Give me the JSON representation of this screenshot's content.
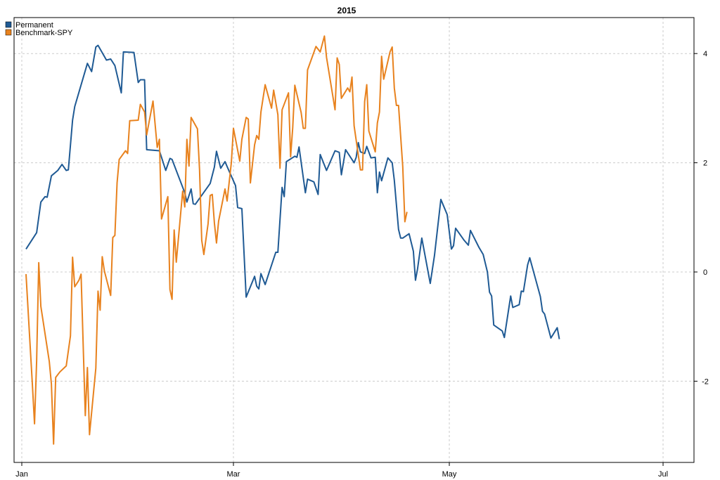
{
  "chart_data": {
    "type": "line",
    "title": "2015",
    "xlabel": "",
    "ylabel": "",
    "ylim": [
      -3.45,
      4.55
    ],
    "xlim": [
      0.0,
      6.06
    ],
    "x_axis": {
      "ticks": [
        0.0,
        1.0,
        2.02,
        3.03
      ],
      "tick_labels": [
        "Jan",
        "Mar",
        "May",
        "Jul"
      ]
    },
    "y_axis": {
      "ticks": [
        -2,
        0,
        2,
        4
      ],
      "tick_labels": [
        "-2",
        "0",
        "2",
        "4"
      ],
      "side": "right"
    },
    "grid": true,
    "legend": {
      "placement": "top-left"
    },
    "series": [
      {
        "name": "Permanent",
        "color": "#1F5A94",
        "points": [
          [
            0.02,
            0.42
          ],
          [
            0.07,
            0.72
          ],
          [
            0.09,
            1.28
          ],
          [
            0.11,
            1.38
          ],
          [
            0.12,
            1.37
          ],
          [
            0.14,
            1.76
          ],
          [
            0.17,
            1.86
          ],
          [
            0.19,
            1.97
          ],
          [
            0.21,
            1.86
          ],
          [
            0.22,
            1.87
          ],
          [
            0.24,
            2.78
          ],
          [
            0.25,
            3.03
          ],
          [
            0.31,
            3.82
          ],
          [
            0.33,
            3.67
          ],
          [
            0.35,
            4.12
          ],
          [
            0.36,
            4.15
          ],
          [
            0.4,
            3.88
          ],
          [
            0.42,
            3.9
          ],
          [
            0.44,
            3.78
          ],
          [
            0.47,
            3.28
          ],
          [
            0.48,
            4.03
          ],
          [
            0.53,
            4.02
          ],
          [
            0.55,
            3.47
          ],
          [
            0.56,
            3.52
          ],
          [
            0.58,
            3.52
          ],
          [
            0.59,
            2.24
          ],
          [
            0.65,
            2.22
          ],
          [
            0.68,
            1.86
          ],
          [
            0.7,
            2.08
          ],
          [
            0.71,
            2.06
          ],
          [
            0.77,
            1.45
          ],
          [
            0.78,
            1.28
          ],
          [
            0.8,
            1.52
          ],
          [
            0.81,
            1.25
          ],
          [
            0.82,
            1.24
          ],
          [
            0.89,
            1.62
          ],
          [
            0.91,
            1.92
          ],
          [
            0.92,
            2.21
          ],
          [
            0.94,
            1.9
          ],
          [
            0.96,
            2.02
          ],
          [
            0.97,
            1.93
          ],
          [
            1.01,
            1.58
          ],
          [
            1.02,
            1.18
          ],
          [
            1.04,
            1.16
          ],
          [
            1.06,
            -0.46
          ],
          [
            1.1,
            -0.08
          ],
          [
            1.11,
            -0.26
          ],
          [
            1.12,
            -0.31
          ],
          [
            1.13,
            -0.03
          ],
          [
            1.15,
            -0.23
          ],
          [
            1.2,
            0.36
          ],
          [
            1.21,
            0.36
          ],
          [
            1.23,
            1.55
          ],
          [
            1.24,
            1.38
          ],
          [
            1.25,
            2.02
          ],
          [
            1.29,
            2.12
          ],
          [
            1.3,
            2.1
          ],
          [
            1.31,
            2.29
          ],
          [
            1.34,
            1.45
          ],
          [
            1.35,
            1.7
          ],
          [
            1.38,
            1.65
          ],
          [
            1.4,
            1.42
          ],
          [
            1.41,
            2.15
          ],
          [
            1.44,
            1.86
          ],
          [
            1.48,
            2.22
          ],
          [
            1.5,
            2.19
          ],
          [
            1.51,
            1.78
          ],
          [
            1.53,
            2.24
          ],
          [
            1.57,
            2.0
          ],
          [
            1.58,
            2.1
          ],
          [
            1.59,
            2.37
          ],
          [
            1.6,
            2.2
          ],
          [
            1.62,
            2.17
          ],
          [
            1.63,
            2.3
          ],
          [
            1.65,
            2.09
          ],
          [
            1.67,
            2.1
          ],
          [
            1.68,
            1.45
          ],
          [
            1.69,
            1.83
          ],
          [
            1.7,
            1.67
          ],
          [
            1.73,
            2.09
          ],
          [
            1.75,
            2.0
          ],
          [
            1.76,
            1.68
          ],
          [
            1.78,
            0.78
          ],
          [
            1.79,
            0.62
          ],
          [
            1.8,
            0.62
          ],
          [
            1.83,
            0.7
          ],
          [
            1.85,
            0.38
          ],
          [
            1.86,
            -0.15
          ],
          [
            1.87,
            0.06
          ],
          [
            1.89,
            0.62
          ],
          [
            1.93,
            -0.21
          ],
          [
            1.95,
            0.3
          ],
          [
            1.98,
            1.33
          ],
          [
            2.01,
            1.05
          ],
          [
            2.03,
            0.42
          ],
          [
            2.04,
            0.48
          ],
          [
            2.05,
            0.8
          ],
          [
            2.09,
            0.58
          ],
          [
            2.11,
            0.49
          ],
          [
            2.12,
            0.76
          ],
          [
            2.16,
            0.45
          ],
          [
            2.18,
            0.32
          ],
          [
            2.2,
            0.0
          ],
          [
            2.21,
            -0.37
          ],
          [
            2.22,
            -0.44
          ],
          [
            2.23,
            -0.97
          ],
          [
            2.27,
            -1.08
          ],
          [
            2.28,
            -1.2
          ],
          [
            2.31,
            -0.44
          ],
          [
            2.32,
            -0.65
          ],
          [
            2.35,
            -0.6
          ],
          [
            2.36,
            -0.35
          ],
          [
            2.37,
            -0.36
          ],
          [
            2.39,
            0.13
          ],
          [
            2.4,
            0.26
          ],
          [
            2.45,
            -0.45
          ],
          [
            2.46,
            -0.72
          ],
          [
            2.47,
            -0.77
          ],
          [
            2.5,
            -1.21
          ],
          [
            2.53,
            -1.02
          ],
          [
            2.54,
            -1.23
          ]
        ]
      },
      {
        "name": "Benchmark-SPY",
        "color": "#E8821E",
        "points": [
          [
            0.02,
            -0.04
          ],
          [
            0.05,
            -2.05
          ],
          [
            0.06,
            -2.78
          ],
          [
            0.07,
            -1.63
          ],
          [
            0.08,
            0.17
          ],
          [
            0.09,
            -0.63
          ],
          [
            0.13,
            -1.64
          ],
          [
            0.14,
            -2.05
          ],
          [
            0.15,
            -3.15
          ],
          [
            0.16,
            -1.93
          ],
          [
            0.18,
            -1.83
          ],
          [
            0.21,
            -1.72
          ],
          [
            0.23,
            -1.17
          ],
          [
            0.24,
            0.27
          ],
          [
            0.25,
            -0.27
          ],
          [
            0.27,
            -0.15
          ],
          [
            0.28,
            -0.04
          ],
          [
            0.3,
            -2.63
          ],
          [
            0.31,
            -1.75
          ],
          [
            0.32,
            -2.98
          ],
          [
            0.35,
            -1.76
          ],
          [
            0.36,
            -0.35
          ],
          [
            0.37,
            -0.7
          ],
          [
            0.38,
            0.28
          ],
          [
            0.39,
            0.02
          ],
          [
            0.42,
            -0.43
          ],
          [
            0.43,
            0.63
          ],
          [
            0.44,
            0.67
          ],
          [
            0.45,
            1.63
          ],
          [
            0.46,
            2.06
          ],
          [
            0.49,
            2.22
          ],
          [
            0.5,
            2.17
          ],
          [
            0.51,
            2.77
          ],
          [
            0.55,
            2.78
          ],
          [
            0.56,
            3.07
          ],
          [
            0.58,
            2.93
          ],
          [
            0.59,
            2.51
          ],
          [
            0.62,
            3.13
          ],
          [
            0.64,
            2.28
          ],
          [
            0.65,
            2.43
          ],
          [
            0.66,
            0.97
          ],
          [
            0.69,
            1.38
          ],
          [
            0.7,
            -0.32
          ],
          [
            0.71,
            -0.5
          ],
          [
            0.72,
            0.77
          ],
          [
            0.73,
            0.18
          ],
          [
            0.76,
            1.48
          ],
          [
            0.77,
            1.19
          ],
          [
            0.78,
            2.43
          ],
          [
            0.79,
            1.94
          ],
          [
            0.8,
            2.83
          ],
          [
            0.83,
            2.62
          ],
          [
            0.84,
            1.87
          ],
          [
            0.85,
            0.58
          ],
          [
            0.86,
            0.32
          ],
          [
            0.88,
            0.88
          ],
          [
            0.89,
            1.4
          ],
          [
            0.9,
            1.42
          ],
          [
            0.91,
            0.9
          ],
          [
            0.92,
            0.53
          ],
          [
            0.93,
            0.93
          ],
          [
            0.96,
            1.52
          ],
          [
            0.97,
            1.3
          ],
          [
            0.99,
            2.0
          ],
          [
            1.0,
            2.63
          ],
          [
            1.03,
            2.03
          ],
          [
            1.04,
            2.43
          ],
          [
            1.06,
            2.83
          ],
          [
            1.07,
            2.8
          ],
          [
            1.08,
            1.63
          ],
          [
            1.1,
            2.33
          ],
          [
            1.11,
            2.5
          ],
          [
            1.12,
            2.43
          ],
          [
            1.13,
            2.93
          ],
          [
            1.15,
            3.43
          ],
          [
            1.18,
            3.0
          ],
          [
            1.19,
            3.33
          ],
          [
            1.21,
            2.88
          ],
          [
            1.22,
            1.9
          ],
          [
            1.23,
            2.97
          ],
          [
            1.26,
            3.28
          ],
          [
            1.27,
            2.11
          ],
          [
            1.28,
            2.64
          ],
          [
            1.29,
            3.42
          ],
          [
            1.32,
            2.92
          ],
          [
            1.33,
            2.63
          ],
          [
            1.34,
            2.63
          ],
          [
            1.35,
            3.7
          ],
          [
            1.39,
            4.13
          ],
          [
            1.41,
            4.03
          ],
          [
            1.43,
            4.32
          ],
          [
            1.44,
            3.93
          ],
          [
            1.48,
            2.97
          ],
          [
            1.49,
            3.92
          ],
          [
            1.5,
            3.8
          ],
          [
            1.51,
            3.18
          ],
          [
            1.54,
            3.37
          ],
          [
            1.55,
            3.3
          ],
          [
            1.56,
            3.57
          ],
          [
            1.57,
            2.68
          ],
          [
            1.6,
            1.87
          ],
          [
            1.61,
            1.87
          ],
          [
            1.62,
            3.12
          ],
          [
            1.63,
            3.43
          ],
          [
            1.64,
            2.58
          ],
          [
            1.67,
            2.2
          ],
          [
            1.68,
            2.73
          ],
          [
            1.69,
            2.93
          ],
          [
            1.7,
            3.95
          ],
          [
            1.71,
            3.53
          ],
          [
            1.74,
            4.03
          ],
          [
            1.75,
            4.12
          ],
          [
            1.76,
            3.37
          ],
          [
            1.77,
            3.05
          ],
          [
            1.78,
            3.05
          ],
          [
            1.8,
            1.93
          ],
          [
            1.81,
            0.92
          ],
          [
            1.82,
            1.1
          ]
        ]
      }
    ]
  }
}
